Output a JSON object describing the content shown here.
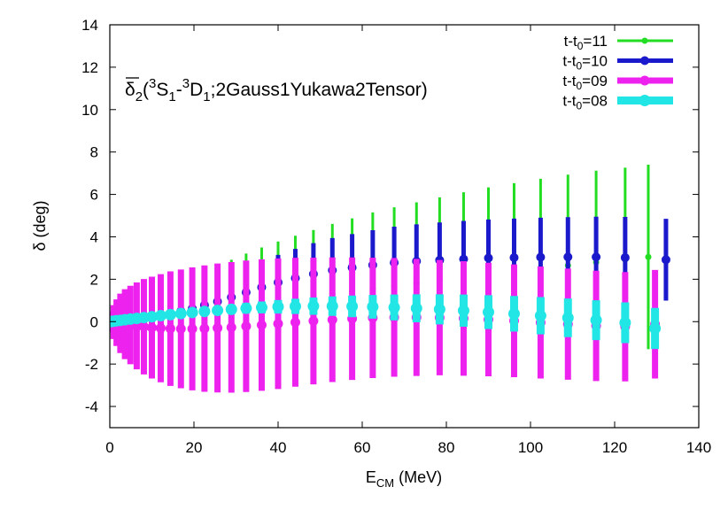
{
  "chart_data": {
    "type": "scatter",
    "title_parts": {
      "delta": "δ",
      "sub2": "2",
      "open": "(",
      "sup3a": "3",
      "s": "S",
      "sub1a": "1",
      "dash": "-",
      "sup3b": "3",
      "d": "D",
      "sub1b": "1",
      "rest": ";2Gauss1Yukawa2Tensor)"
    },
    "xlabel": {
      "main": "E",
      "sub": "CM",
      "unit": " (MeV)"
    },
    "ylabel": "δ (deg)",
    "xlim": [
      0,
      140
    ],
    "ylim": [
      -5,
      14
    ],
    "xticks": [
      "0",
      "20",
      "40",
      "60",
      "80",
      "100",
      "120",
      "140"
    ],
    "yticks": [
      "-4",
      "-2",
      "0",
      "2",
      "4",
      "6",
      "8",
      "10",
      "12",
      "14"
    ],
    "grid": false,
    "legend_position": "top-right",
    "series": [
      {
        "name_parts": {
          "pre": "t-t",
          "sub": "0",
          "post": "=11"
        },
        "color": "#22dd22",
        "x": [
          0,
          0.1,
          0.4,
          0.9,
          1.6,
          2.5,
          3.6,
          4.9,
          6.4,
          8.1,
          10,
          12.1,
          14.4,
          16.9,
          19.6,
          22.5,
          25.6,
          28.9,
          32.4,
          36.1,
          40,
          44.1,
          48.4,
          52.9,
          57.6,
          62.5,
          67.6,
          72.9,
          78.4,
          84.1,
          90,
          96.1,
          102.4,
          108.9,
          115.6,
          122.5,
          128
        ],
        "y": [
          0,
          0.002,
          0.01,
          0.02,
          0.04,
          0.06,
          0.09,
          0.12,
          0.16,
          0.2,
          0.25,
          0.3,
          0.36,
          0.42,
          0.49,
          0.56,
          0.64,
          0.72,
          0.81,
          0.9,
          1,
          1.1,
          1.2,
          1.31,
          1.42,
          1.55,
          1.67,
          1.8,
          1.94,
          2.1,
          2.25,
          2.38,
          2.52,
          2.65,
          2.8,
          2.92,
          3.05
        ],
        "err": [
          0,
          0.02,
          0.05,
          0.1,
          0.18,
          0.27,
          0.38,
          0.5,
          0.65,
          0.8,
          0.95,
          1.1,
          1.28,
          1.45,
          1.63,
          1.82,
          2.0,
          2.2,
          2.4,
          2.6,
          2.78,
          2.95,
          3.12,
          3.3,
          3.45,
          3.6,
          3.72,
          3.83,
          3.92,
          4.0,
          4.08,
          4.15,
          4.22,
          4.28,
          4.32,
          4.34,
          4.35
        ]
      },
      {
        "name_parts": {
          "pre": "t-t",
          "sub": "0",
          "post": "=10"
        },
        "color": "#1a1acc",
        "x": [
          0,
          0.1,
          0.4,
          0.9,
          1.6,
          2.5,
          3.6,
          4.9,
          6.4,
          8.1,
          10,
          12.1,
          14.4,
          16.9,
          19.6,
          22.5,
          25.6,
          28.9,
          32.4,
          36.1,
          40,
          44.1,
          48.4,
          52.9,
          57.6,
          62.5,
          67.6,
          72.9,
          78.4,
          84.1,
          90,
          96.1,
          102.4,
          108.9,
          115.6,
          122.5,
          132.2
        ],
        "y": [
          0,
          0.002,
          0.01,
          0.02,
          0.04,
          0.07,
          0.1,
          0.14,
          0.18,
          0.23,
          0.28,
          0.34,
          0.4,
          0.5,
          0.62,
          0.78,
          0.95,
          1.15,
          1.38,
          1.62,
          1.85,
          2.05,
          2.25,
          2.42,
          2.55,
          2.67,
          2.78,
          2.85,
          2.9,
          2.95,
          3.0,
          3.02,
          3.04,
          3.05,
          3.05,
          3.02,
          2.92
        ],
        "err": [
          0,
          0.02,
          0.05,
          0.08,
          0.12,
          0.17,
          0.22,
          0.28,
          0.35,
          0.42,
          0.5,
          0.58,
          0.66,
          0.74,
          0.82,
          0.9,
          0.98,
          1.06,
          1.14,
          1.22,
          1.3,
          1.38,
          1.45,
          1.52,
          1.58,
          1.64,
          1.7,
          1.74,
          1.78,
          1.8,
          1.82,
          1.84,
          1.86,
          1.88,
          1.9,
          1.92,
          1.93
        ]
      },
      {
        "name_parts": {
          "pre": "t-t",
          "sub": "0",
          "post": "=09"
        },
        "color": "#ee22ee",
        "x": [
          0,
          0.1,
          0.4,
          0.9,
          1.6,
          2.5,
          3.6,
          4.9,
          6.4,
          8.1,
          10,
          12.1,
          14.4,
          16.9,
          19.6,
          22.5,
          25.6,
          28.9,
          32.4,
          36.1,
          40,
          44.1,
          48.4,
          52.9,
          57.6,
          62.5,
          67.6,
          72.9,
          78.4,
          84.1,
          90,
          96.1,
          102.4,
          108.9,
          115.6,
          122.5,
          129.6
        ],
        "y": [
          0,
          -0.002,
          -0.01,
          -0.02,
          -0.05,
          -0.08,
          -0.12,
          -0.16,
          -0.2,
          -0.24,
          -0.28,
          -0.31,
          -0.33,
          -0.34,
          -0.34,
          -0.33,
          -0.3,
          -0.27,
          -0.22,
          -0.16,
          -0.1,
          -0.03,
          0.03,
          0.09,
          0.14,
          0.18,
          0.2,
          0.2,
          0.19,
          0.15,
          0.1,
          0.04,
          -0.04,
          -0.12,
          -0.2,
          -0.24,
          -0.12
        ],
        "err": [
          0,
          0.2,
          0.5,
          0.8,
          1.1,
          1.4,
          1.65,
          1.85,
          2.05,
          2.25,
          2.4,
          2.55,
          2.7,
          2.8,
          2.9,
          2.98,
          3.04,
          3.08,
          3.1,
          3.1,
          3.08,
          3.04,
          2.99,
          2.94,
          2.89,
          2.84,
          2.8,
          2.76,
          2.72,
          2.7,
          2.68,
          2.66,
          2.64,
          2.62,
          2.6,
          2.58,
          2.56
        ]
      },
      {
        "name_parts": {
          "pre": "t-t",
          "sub": "0",
          "post": "=08"
        },
        "color": "#22e5e5",
        "x": [
          0,
          0.1,
          0.4,
          0.9,
          1.6,
          2.5,
          3.6,
          4.9,
          6.4,
          8.1,
          10,
          12.1,
          14.4,
          16.9,
          19.6,
          22.5,
          25.6,
          28.9,
          32.4,
          36.1,
          40,
          44.1,
          48.4,
          52.9,
          57.6,
          62.5,
          67.6,
          72.9,
          78.4,
          84.1,
          90,
          96.1,
          102.4,
          108.9,
          115.6,
          122.5,
          129.6
        ],
        "y": [
          0,
          0.002,
          0.01,
          0.02,
          0.04,
          0.06,
          0.09,
          0.12,
          0.15,
          0.19,
          0.23,
          0.28,
          0.33,
          0.38,
          0.43,
          0.48,
          0.53,
          0.58,
          0.63,
          0.67,
          0.7,
          0.72,
          0.73,
          0.73,
          0.72,
          0.7,
          0.67,
          0.63,
          0.58,
          0.52,
          0.45,
          0.37,
          0.28,
          0.18,
          0.07,
          -0.05,
          -0.32
        ],
        "err": [
          0,
          0.01,
          0.02,
          0.03,
          0.04,
          0.05,
          0.06,
          0.07,
          0.08,
          0.09,
          0.1,
          0.11,
          0.12,
          0.14,
          0.16,
          0.18,
          0.2,
          0.22,
          0.25,
          0.28,
          0.32,
          0.36,
          0.41,
          0.46,
          0.51,
          0.56,
          0.61,
          0.66,
          0.71,
          0.76,
          0.8,
          0.84,
          0.88,
          0.91,
          0.94,
          0.96,
          0.97
        ]
      }
    ]
  }
}
